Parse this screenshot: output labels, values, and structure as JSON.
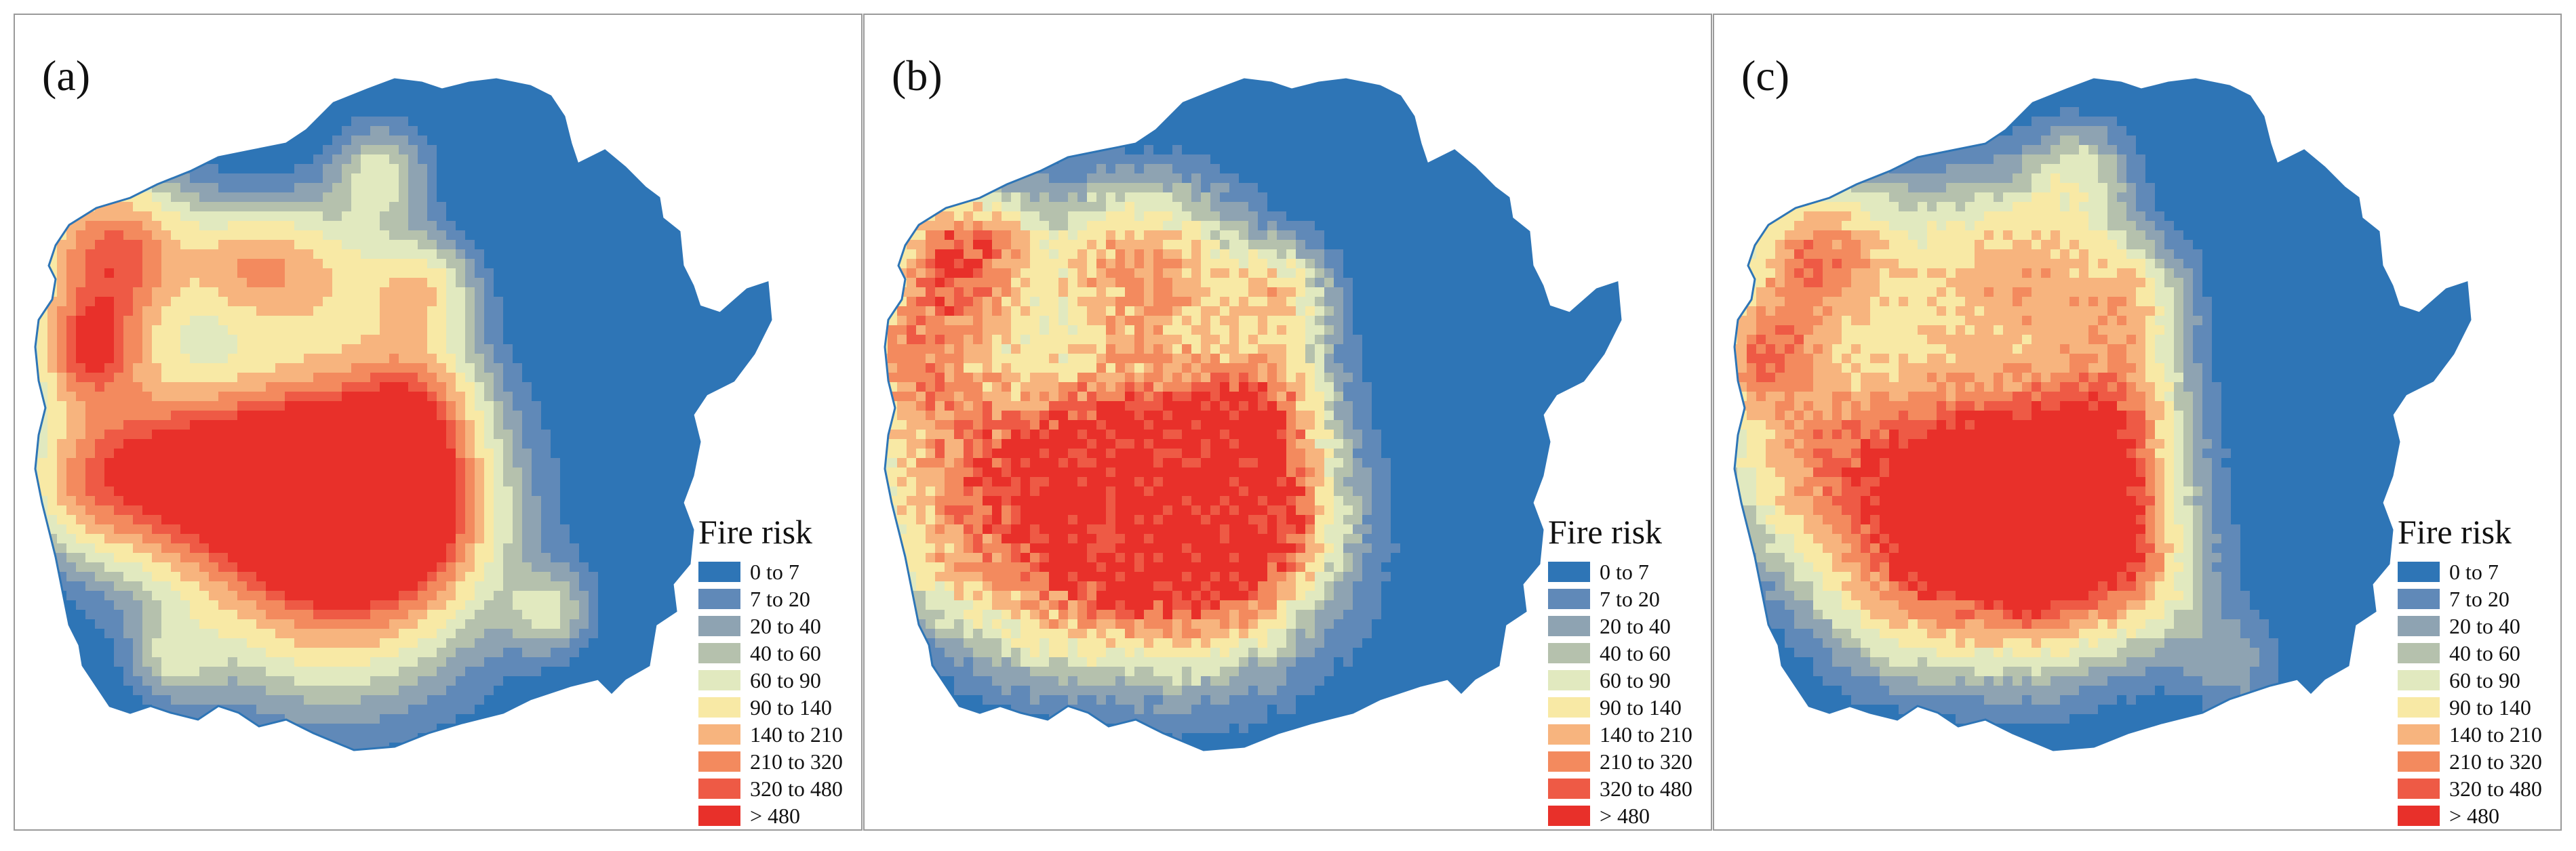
{
  "panels": [
    {
      "label": "(a)",
      "variant": "a"
    },
    {
      "label": "(b)",
      "variant": "b"
    },
    {
      "label": "(c)",
      "variant": "c"
    }
  ],
  "legend": {
    "title": "Fire risk",
    "classes": [
      {
        "label": "0 to 7",
        "color": "#2e75b6"
      },
      {
        "label": "7 to 20",
        "color": "#6089b8"
      },
      {
        "label": "20 to 40",
        "color": "#8ea3b2"
      },
      {
        "label": "40 to 60",
        "color": "#b5c1ad"
      },
      {
        "label": "60 to 90",
        "color": "#e1e9bf"
      },
      {
        "label": "90 to 140",
        "color": "#f8e9a5"
      },
      {
        "label": "140 to 210",
        "color": "#f7b47e"
      },
      {
        "label": "210 to 320",
        "color": "#f38a5e"
      },
      {
        "label": "320 to 480",
        "color": "#ee5a45"
      },
      {
        "label": "> 480",
        "color": "#e8302a"
      }
    ]
  },
  "colors": {
    "panel_border": "#9a9a9a",
    "background": "#ffffff"
  }
}
